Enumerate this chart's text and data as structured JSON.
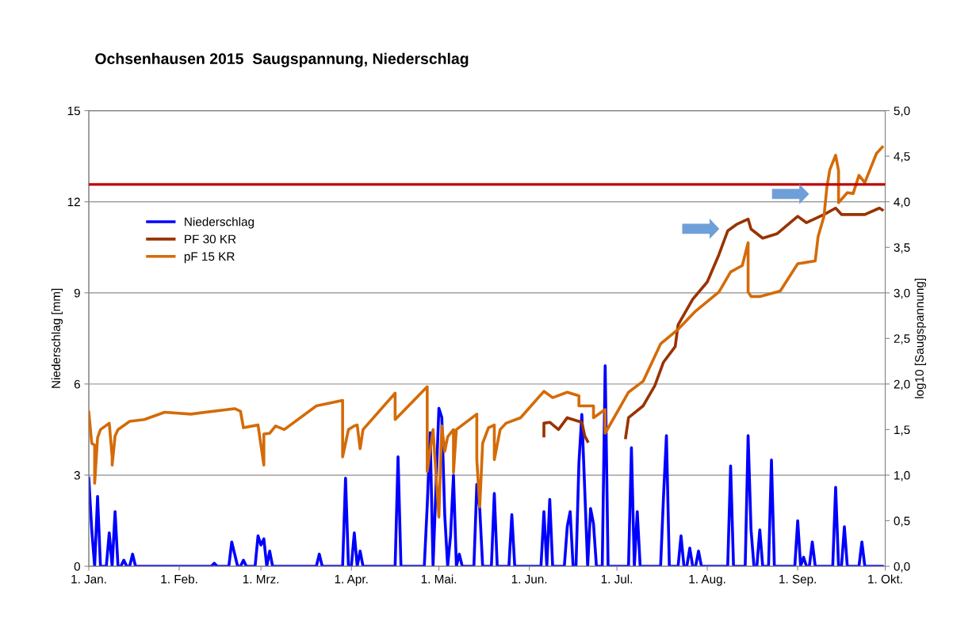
{
  "chart_data": {
    "type": "line",
    "title": "Ochsenhausen 2015  Saugspannung, Niederschlag",
    "ylabel": "Niederschlag [mm]",
    "y2label": "log10 [Saugspannung]",
    "xlim": [
      "2015-01-01",
      "2015-10-01"
    ],
    "xticks": [
      {
        "value": "2015-01-01",
        "label": "1. Jan."
      },
      {
        "value": "2015-02-01",
        "label": "1. Feb."
      },
      {
        "value": "2015-03-01",
        "label": "1. Mrz."
      },
      {
        "value": "2015-04-01",
        "label": "1. Apr."
      },
      {
        "value": "2015-05-01",
        "label": "1. Mai."
      },
      {
        "value": "2015-06-01",
        "label": "1. Jun."
      },
      {
        "value": "2015-07-01",
        "label": "1. Jul."
      },
      {
        "value": "2015-08-01",
        "label": "1. Aug."
      },
      {
        "value": "2015-09-01",
        "label": "1. Sep."
      },
      {
        "value": "2015-10-01",
        "label": "1. Okt."
      }
    ],
    "ylim": [
      0,
      15
    ],
    "yticks": [
      0,
      3,
      6,
      9,
      12,
      15
    ],
    "y2lim": [
      0,
      5
    ],
    "y2ticks": [
      {
        "value": 0,
        "label": "0,0"
      },
      {
        "value": 0.5,
        "label": "0,5"
      },
      {
        "value": 1,
        "label": "1,0"
      },
      {
        "value": 1.5,
        "label": "1,5"
      },
      {
        "value": 2,
        "label": "2,0"
      },
      {
        "value": 2.5,
        "label": "2,5"
      },
      {
        "value": 3,
        "label": "3,0"
      },
      {
        "value": 3.5,
        "label": "3,5"
      },
      {
        "value": 4,
        "label": "4,0"
      },
      {
        "value": 4.5,
        "label": "4,5"
      },
      {
        "value": 5,
        "label": "5,0"
      }
    ],
    "grid": "y",
    "legend": "top left",
    "marker": "none",
    "line_style": "solid",
    "ref_lines": [
      {
        "axis": "y2",
        "value": 4.19,
        "color": "#c00000"
      }
    ],
    "series": [
      {
        "name": "Niederschlag",
        "color": "#0000ff",
        "x": [
          "2015-01-01",
          "2015-01-02",
          "2015-01-03",
          "2015-01-04",
          "2015-01-05",
          "2015-01-07",
          "2015-01-08",
          "2015-01-09",
          "2015-01-10",
          "2015-01-11",
          "2015-01-12",
          "2015-01-13",
          "2015-01-14",
          "2015-01-15",
          "2015-01-16",
          "2015-01-17",
          "2015-02-12",
          "2015-02-13",
          "2015-02-14",
          "2015-02-18",
          "2015-02-19",
          "2015-02-20",
          "2015-02-21",
          "2015-02-22",
          "2015-02-23",
          "2015-02-24",
          "2015-02-27",
          "2015-02-28",
          "2015-03-01",
          "2015-03-02",
          "2015-03-03",
          "2015-03-04",
          "2015-03-05",
          "2015-03-20",
          "2015-03-21",
          "2015-03-22",
          "2015-03-29",
          "2015-03-30",
          "2015-03-31",
          "2015-04-01",
          "2015-04-02",
          "2015-04-03",
          "2015-04-04",
          "2015-04-05",
          "2015-04-16",
          "2015-04-17",
          "2015-04-18",
          "2015-04-26",
          "2015-04-27",
          "2015-04-28",
          "2015-04-29",
          "2015-05-01",
          "2015-05-02",
          "2015-05-03",
          "2015-05-04",
          "2015-05-05",
          "2015-05-06",
          "2015-05-07",
          "2015-05-08",
          "2015-05-09",
          "2015-05-13",
          "2015-05-14",
          "2015-05-15",
          "2015-05-16",
          "2015-05-19",
          "2015-05-20",
          "2015-05-21",
          "2015-05-25",
          "2015-05-26",
          "2015-05-27",
          "2015-06-05",
          "2015-06-06",
          "2015-06-07",
          "2015-06-08",
          "2015-06-09",
          "2015-06-13",
          "2015-06-14",
          "2015-06-15",
          "2015-06-16",
          "2015-06-17",
          "2015-06-18",
          "2015-06-19",
          "2015-06-20",
          "2015-06-21",
          "2015-06-22",
          "2015-06-23",
          "2015-06-24",
          "2015-06-26",
          "2015-06-27",
          "2015-06-28",
          "2015-07-05",
          "2015-07-06",
          "2015-07-07",
          "2015-07-08",
          "2015-07-09",
          "2015-07-16",
          "2015-07-17",
          "2015-07-18",
          "2015-07-19",
          "2015-07-22",
          "2015-07-23",
          "2015-07-24",
          "2015-07-25",
          "2015-07-26",
          "2015-07-27",
          "2015-07-28",
          "2015-07-29",
          "2015-07-30",
          "2015-08-08",
          "2015-08-09",
          "2015-08-10",
          "2015-08-14",
          "2015-08-15",
          "2015-08-16",
          "2015-08-17",
          "2015-08-18",
          "2015-08-19",
          "2015-08-20",
          "2015-08-22",
          "2015-08-23",
          "2015-08-24",
          "2015-08-31",
          "2015-09-01",
          "2015-09-02",
          "2015-09-03",
          "2015-09-04",
          "2015-09-05",
          "2015-09-06",
          "2015-09-07",
          "2015-09-13",
          "2015-09-14",
          "2015-09-15",
          "2015-09-16",
          "2015-09-17",
          "2015-09-18",
          "2015-09-22",
          "2015-09-23",
          "2015-09-24",
          "2015-09-30"
        ],
        "values": [
          2.9,
          1.2,
          0,
          2.3,
          0,
          0,
          1.1,
          0,
          1.8,
          0,
          0,
          0.2,
          0,
          0,
          0.4,
          0,
          0,
          0.1,
          0,
          0,
          0.8,
          0.4,
          0,
          0,
          0.2,
          0,
          0,
          1.0,
          0.7,
          0.9,
          0,
          0.5,
          0,
          0,
          0.4,
          0,
          0,
          2.9,
          0,
          0,
          1.1,
          0,
          0.5,
          0,
          0,
          3.6,
          0,
          0,
          2.0,
          4.4,
          0,
          5.2,
          4.9,
          1.7,
          0,
          1.0,
          3.0,
          0,
          0.4,
          0,
          0,
          2.7,
          1.9,
          0,
          0,
          2.4,
          0,
          0,
          1.7,
          0,
          0,
          1.8,
          0,
          2.2,
          0,
          0,
          1.3,
          1.8,
          0,
          0,
          3.4,
          5.0,
          2.5,
          0,
          1.9,
          1.4,
          0,
          0,
          6.6,
          0,
          0,
          3.9,
          0,
          1.8,
          0,
          0,
          2.3,
          4.3,
          0,
          0,
          1.0,
          0,
          0,
          0.6,
          0,
          0,
          0.5,
          0,
          0,
          3.3,
          0,
          0,
          4.3,
          1.2,
          0,
          0,
          1.2,
          0,
          0,
          3.5,
          0,
          0,
          1.5,
          0,
          0.3,
          0,
          0,
          0.8,
          0,
          0,
          2.6,
          0,
          0,
          1.3,
          0,
          0,
          0.8,
          0,
          0
        ]
      },
      {
        "name": "PF 30 KR",
        "color": "#993300",
        "axis": "y2",
        "x": [
          "2015-06-06",
          "2015-06-06",
          "2015-06-08",
          "2015-06-11",
          "2015-06-14",
          "2015-06-19",
          "2015-06-20",
          "2015-06-21",
          "2015-06-28",
          "2015-07-04",
          "2015-07-05",
          "2015-07-10",
          "2015-07-14",
          "2015-07-17",
          "2015-07-21",
          "2015-07-22",
          "2015-07-27",
          "2015-08-01",
          "2015-08-05",
          "2015-08-08",
          "2015-08-11",
          "2015-08-15",
          "2015-08-16",
          "2015-08-20",
          "2015-08-25",
          "2015-09-01",
          "2015-09-04",
          "2015-09-10",
          "2015-09-14",
          "2015-09-16",
          "2015-09-24",
          "2015-09-29",
          "2015-09-30"
        ],
        "values": [
          1.43,
          1.57,
          1.58,
          1.5,
          1.63,
          1.58,
          1.43,
          1.37,
          null,
          1.41,
          1.63,
          1.76,
          1.98,
          2.24,
          2.41,
          2.65,
          2.93,
          3.12,
          3.42,
          3.68,
          3.75,
          3.81,
          3.7,
          3.6,
          3.65,
          3.84,
          3.77,
          3.86,
          3.93,
          3.86,
          3.86,
          3.93,
          3.91
        ]
      },
      {
        "name": "pF 15 KR",
        "color": "#d46b08",
        "axis": "y2",
        "x": [
          "2015-01-01",
          "2015-01-02",
          "2015-01-03",
          "2015-01-03",
          "2015-01-04",
          "2015-01-05",
          "2015-01-08",
          "2015-01-09",
          "2015-01-09",
          "2015-01-10",
          "2015-01-11",
          "2015-01-15",
          "2015-01-20",
          "2015-01-27",
          "2015-02-05",
          "2015-02-20",
          "2015-02-22",
          "2015-02-23",
          "2015-02-28",
          "2015-03-02",
          "2015-03-02",
          "2015-03-04",
          "2015-03-06",
          "2015-03-09",
          "2015-03-20",
          "2015-03-29",
          "2015-03-29",
          "2015-03-31",
          "2015-04-02",
          "2015-04-03",
          "2015-04-04",
          "2015-04-05",
          "2015-04-16",
          "2015-04-16",
          "2015-04-27",
          "2015-04-27",
          "2015-04-29",
          "2015-05-01",
          "2015-05-02",
          "2015-05-03",
          "2015-05-04",
          "2015-05-06",
          "2015-05-06",
          "2015-05-07",
          "2015-05-14",
          "2015-05-14",
          "2015-05-15",
          "2015-05-16",
          "2015-05-18",
          "2015-05-20",
          "2015-05-20",
          "2015-05-22",
          "2015-05-24",
          "2015-05-29",
          "2015-06-06",
          "2015-06-09",
          "2015-06-14",
          "2015-06-18",
          "2015-06-18",
          "2015-06-23",
          "2015-06-23",
          "2015-06-27",
          "2015-06-27",
          "2015-07-05",
          "2015-07-10",
          "2015-07-16",
          "2015-07-22",
          "2015-07-28",
          "2015-08-05",
          "2015-08-09",
          "2015-08-13",
          "2015-08-15",
          "2015-08-15",
          "2015-08-16",
          "2015-08-19",
          "2015-08-26",
          "2015-09-01",
          "2015-09-07",
          "2015-09-08",
          "2015-09-10",
          "2015-09-11",
          "2015-09-12",
          "2015-09-14",
          "2015-09-15",
          "2015-09-15",
          "2015-09-18",
          "2015-09-20",
          "2015-09-22",
          "2015-09-24",
          "2015-09-26",
          "2015-09-28",
          "2015-09-30"
        ],
        "values": [
          1.69,
          1.35,
          1.33,
          0.91,
          1.41,
          1.5,
          1.57,
          1.2,
          1.11,
          1.43,
          1.5,
          1.59,
          1.61,
          1.69,
          1.67,
          1.73,
          1.7,
          1.52,
          1.55,
          1.11,
          1.45,
          1.46,
          1.54,
          1.5,
          1.76,
          1.82,
          1.2,
          1.5,
          1.54,
          1.55,
          1.29,
          1.5,
          1.9,
          1.61,
          1.97,
          1.04,
          1.5,
          0.54,
          1.54,
          1.26,
          1.42,
          1.5,
          1.03,
          1.5,
          1.67,
          1.17,
          0.65,
          1.35,
          1.52,
          1.55,
          1.17,
          1.5,
          1.57,
          1.63,
          1.92,
          1.85,
          1.91,
          1.87,
          1.76,
          1.76,
          1.63,
          1.72,
          1.46,
          1.91,
          2.03,
          2.44,
          2.6,
          2.8,
          3.01,
          3.23,
          3.3,
          3.55,
          3.01,
          2.96,
          2.96,
          3.02,
          3.32,
          3.35,
          3.62,
          3.84,
          4.16,
          4.35,
          4.51,
          4.34,
          3.99,
          4.1,
          4.09,
          4.29,
          4.21,
          4.37,
          4.53,
          4.6
        ]
      }
    ]
  }
}
